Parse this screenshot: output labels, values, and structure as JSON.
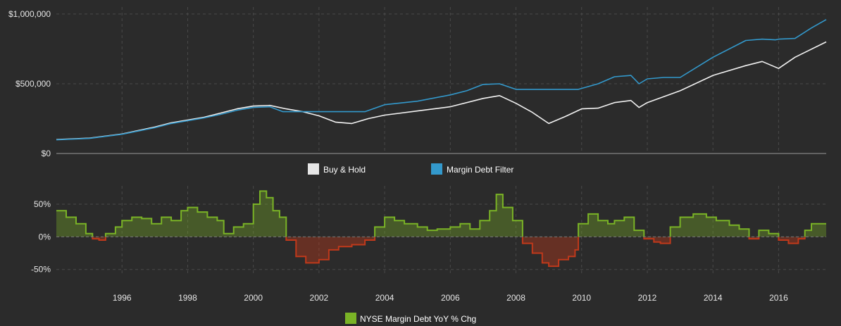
{
  "chart_data": [
    {
      "type": "line",
      "legend_placement": "bottom-center",
      "grid": true,
      "xlim": [
        1994.0,
        2017.45
      ],
      "ylim": [
        0,
        1050000
      ],
      "x_ticks": [
        1996,
        1998,
        2000,
        2002,
        2004,
        2006,
        2008,
        2010,
        2012,
        2014,
        2016
      ],
      "y_ticks": [
        0,
        500000,
        1000000
      ],
      "y_tick_labels": [
        "$0",
        "$500,000",
        "$1,000,000"
      ],
      "series": [
        {
          "name": "Buy & Hold",
          "color": "#f2f2f2",
          "points": [
            [
              1994.0,
              100000
            ],
            [
              1995.0,
              110000
            ],
            [
              1996.0,
              140000
            ],
            [
              1997.0,
              190000
            ],
            [
              1997.5,
              220000
            ],
            [
              1998.5,
              260000
            ],
            [
              1999.0,
              290000
            ],
            [
              1999.5,
              320000
            ],
            [
              2000.0,
              340000
            ],
            [
              2000.5,
              345000
            ],
            [
              2001.0,
              320000
            ],
            [
              2001.5,
              300000
            ],
            [
              2002.0,
              270000
            ],
            [
              2002.5,
              225000
            ],
            [
              2003.0,
              215000
            ],
            [
              2003.5,
              250000
            ],
            [
              2004.0,
              275000
            ],
            [
              2005.0,
              305000
            ],
            [
              2006.0,
              335000
            ],
            [
              2007.0,
              395000
            ],
            [
              2007.5,
              415000
            ],
            [
              2008.0,
              360000
            ],
            [
              2008.5,
              295000
            ],
            [
              2009.0,
              215000
            ],
            [
              2009.5,
              265000
            ],
            [
              2010.0,
              320000
            ],
            [
              2010.5,
              325000
            ],
            [
              2011.0,
              365000
            ],
            [
              2011.5,
              380000
            ],
            [
              2011.75,
              330000
            ],
            [
              2012.0,
              365000
            ],
            [
              2013.0,
              450000
            ],
            [
              2014.0,
              560000
            ],
            [
              2015.0,
              630000
            ],
            [
              2015.5,
              660000
            ],
            [
              2016.0,
              610000
            ],
            [
              2016.5,
              690000
            ],
            [
              2017.45,
              800000
            ]
          ]
        },
        {
          "name": "Margin Debt Filter",
          "color": "#3399cc",
          "points": [
            [
              1994.0,
              98000
            ],
            [
              1995.0,
              108000
            ],
            [
              1996.0,
              138000
            ],
            [
              1997.0,
              185000
            ],
            [
              1997.5,
              215000
            ],
            [
              1998.5,
              255000
            ],
            [
              1999.0,
              280000
            ],
            [
              1999.5,
              310000
            ],
            [
              2000.0,
              330000
            ],
            [
              2000.5,
              335000
            ],
            [
              2000.9,
              300000
            ],
            [
              2003.4,
              300000
            ],
            [
              2004.0,
              350000
            ],
            [
              2005.0,
              375000
            ],
            [
              2006.0,
              420000
            ],
            [
              2006.5,
              450000
            ],
            [
              2007.0,
              495000
            ],
            [
              2007.5,
              500000
            ],
            [
              2008.0,
              460000
            ],
            [
              2009.9,
              460000
            ],
            [
              2010.5,
              500000
            ],
            [
              2011.0,
              550000
            ],
            [
              2011.5,
              560000
            ],
            [
              2011.75,
              500000
            ],
            [
              2012.0,
              535000
            ],
            [
              2012.5,
              545000
            ],
            [
              2013.0,
              545000
            ],
            [
              2014.0,
              690000
            ],
            [
              2015.0,
              810000
            ],
            [
              2015.5,
              820000
            ],
            [
              2015.9,
              815000
            ],
            [
              2016.0,
              820000
            ],
            [
              2016.5,
              825000
            ],
            [
              2017.0,
              900000
            ],
            [
              2017.45,
              960000
            ]
          ]
        }
      ]
    },
    {
      "type": "area",
      "legend_placement": "bottom-center",
      "grid": true,
      "xlim": [
        1994.0,
        2017.45
      ],
      "ylim": [
        -60,
        78
      ],
      "y_ticks": [
        -50,
        0,
        50
      ],
      "y_tick_labels": [
        "-50%",
        "0%",
        "50%"
      ],
      "series": [
        {
          "name": "NYSE Margin Debt YoY % Chg",
          "color_positive": "#7ab326",
          "color_negative": "#c0391b",
          "points": [
            [
              1994.0,
              40
            ],
            [
              1994.3,
              30
            ],
            [
              1994.6,
              20
            ],
            [
              1994.9,
              5
            ],
            [
              1995.1,
              -3
            ],
            [
              1995.3,
              -5
            ],
            [
              1995.5,
              5
            ],
            [
              1995.8,
              15
            ],
            [
              1996.0,
              25
            ],
            [
              1996.3,
              30
            ],
            [
              1996.6,
              28
            ],
            [
              1996.9,
              20
            ],
            [
              1997.2,
              30
            ],
            [
              1997.5,
              25
            ],
            [
              1997.8,
              40
            ],
            [
              1998.0,
              45
            ],
            [
              1998.3,
              38
            ],
            [
              1998.6,
              30
            ],
            [
              1998.9,
              25
            ],
            [
              1999.1,
              5
            ],
            [
              1999.4,
              15
            ],
            [
              1999.7,
              20
            ],
            [
              2000.0,
              50
            ],
            [
              2000.2,
              70
            ],
            [
              2000.4,
              60
            ],
            [
              2000.6,
              40
            ],
            [
              2000.8,
              30
            ],
            [
              2001.0,
              -5
            ],
            [
              2001.3,
              -30
            ],
            [
              2001.6,
              -40
            ],
            [
              2002.0,
              -35
            ],
            [
              2002.3,
              -20
            ],
            [
              2002.6,
              -15
            ],
            [
              2003.0,
              -12
            ],
            [
              2003.4,
              -5
            ],
            [
              2003.7,
              15
            ],
            [
              2004.0,
              30
            ],
            [
              2004.3,
              25
            ],
            [
              2004.6,
              20
            ],
            [
              2005.0,
              15
            ],
            [
              2005.3,
              10
            ],
            [
              2005.6,
              12
            ],
            [
              2006.0,
              15
            ],
            [
              2006.3,
              20
            ],
            [
              2006.6,
              12
            ],
            [
              2006.9,
              25
            ],
            [
              2007.2,
              40
            ],
            [
              2007.4,
              65
            ],
            [
              2007.6,
              45
            ],
            [
              2007.9,
              25
            ],
            [
              2008.2,
              -10
            ],
            [
              2008.5,
              -25
            ],
            [
              2008.8,
              -40
            ],
            [
              2009.0,
              -45
            ],
            [
              2009.3,
              -35
            ],
            [
              2009.6,
              -30
            ],
            [
              2009.8,
              -20
            ],
            [
              2009.9,
              20
            ],
            [
              2010.2,
              35
            ],
            [
              2010.5,
              25
            ],
            [
              2010.8,
              20
            ],
            [
              2011.0,
              25
            ],
            [
              2011.3,
              30
            ],
            [
              2011.6,
              10
            ],
            [
              2011.9,
              -3
            ],
            [
              2012.2,
              -8
            ],
            [
              2012.4,
              -10
            ],
            [
              2012.7,
              15
            ],
            [
              2013.0,
              30
            ],
            [
              2013.4,
              35
            ],
            [
              2013.8,
              30
            ],
            [
              2014.1,
              25
            ],
            [
              2014.5,
              18
            ],
            [
              2014.8,
              12
            ],
            [
              2015.1,
              -3
            ],
            [
              2015.4,
              10
            ],
            [
              2015.7,
              5
            ],
            [
              2016.0,
              -5
            ],
            [
              2016.3,
              -10
            ],
            [
              2016.6,
              -3
            ],
            [
              2016.8,
              10
            ],
            [
              2017.0,
              20
            ],
            [
              2017.45,
              20
            ]
          ]
        }
      ]
    }
  ]
}
